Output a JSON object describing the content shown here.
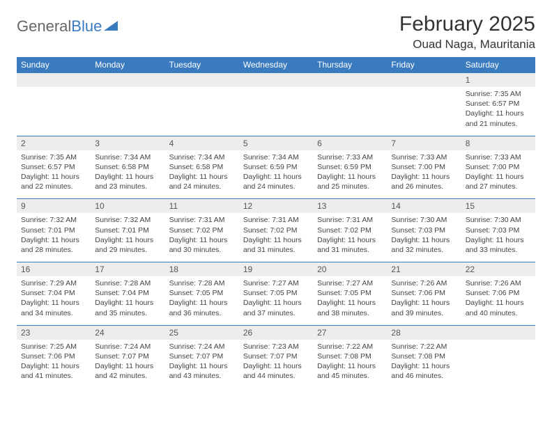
{
  "logo": {
    "part1": "General",
    "part2": "Blue"
  },
  "title": "February 2025",
  "location": "Ouad Naga, Mauritania",
  "colors": {
    "header_bg": "#3a7bbf",
    "header_text": "#ffffff",
    "daynum_bg": "#ededed",
    "rule": "#3a7bbf",
    "body_text": "#444444",
    "page_bg": "#ffffff"
  },
  "day_names": [
    "Sunday",
    "Monday",
    "Tuesday",
    "Wednesday",
    "Thursday",
    "Friday",
    "Saturday"
  ],
  "weeks": [
    {
      "nums": [
        "",
        "",
        "",
        "",
        "",
        "",
        "1"
      ],
      "cells": [
        null,
        null,
        null,
        null,
        null,
        null,
        {
          "sunrise": "Sunrise: 7:35 AM",
          "sunset": "Sunset: 6:57 PM",
          "day1": "Daylight: 11 hours",
          "day2": "and 21 minutes."
        }
      ]
    },
    {
      "nums": [
        "2",
        "3",
        "4",
        "5",
        "6",
        "7",
        "8"
      ],
      "cells": [
        {
          "sunrise": "Sunrise: 7:35 AM",
          "sunset": "Sunset: 6:57 PM",
          "day1": "Daylight: 11 hours",
          "day2": "and 22 minutes."
        },
        {
          "sunrise": "Sunrise: 7:34 AM",
          "sunset": "Sunset: 6:58 PM",
          "day1": "Daylight: 11 hours",
          "day2": "and 23 minutes."
        },
        {
          "sunrise": "Sunrise: 7:34 AM",
          "sunset": "Sunset: 6:58 PM",
          "day1": "Daylight: 11 hours",
          "day2": "and 24 minutes."
        },
        {
          "sunrise": "Sunrise: 7:34 AM",
          "sunset": "Sunset: 6:59 PM",
          "day1": "Daylight: 11 hours",
          "day2": "and 24 minutes."
        },
        {
          "sunrise": "Sunrise: 7:33 AM",
          "sunset": "Sunset: 6:59 PM",
          "day1": "Daylight: 11 hours",
          "day2": "and 25 minutes."
        },
        {
          "sunrise": "Sunrise: 7:33 AM",
          "sunset": "Sunset: 7:00 PM",
          "day1": "Daylight: 11 hours",
          "day2": "and 26 minutes."
        },
        {
          "sunrise": "Sunrise: 7:33 AM",
          "sunset": "Sunset: 7:00 PM",
          "day1": "Daylight: 11 hours",
          "day2": "and 27 minutes."
        }
      ]
    },
    {
      "nums": [
        "9",
        "10",
        "11",
        "12",
        "13",
        "14",
        "15"
      ],
      "cells": [
        {
          "sunrise": "Sunrise: 7:32 AM",
          "sunset": "Sunset: 7:01 PM",
          "day1": "Daylight: 11 hours",
          "day2": "and 28 minutes."
        },
        {
          "sunrise": "Sunrise: 7:32 AM",
          "sunset": "Sunset: 7:01 PM",
          "day1": "Daylight: 11 hours",
          "day2": "and 29 minutes."
        },
        {
          "sunrise": "Sunrise: 7:31 AM",
          "sunset": "Sunset: 7:02 PM",
          "day1": "Daylight: 11 hours",
          "day2": "and 30 minutes."
        },
        {
          "sunrise": "Sunrise: 7:31 AM",
          "sunset": "Sunset: 7:02 PM",
          "day1": "Daylight: 11 hours",
          "day2": "and 31 minutes."
        },
        {
          "sunrise": "Sunrise: 7:31 AM",
          "sunset": "Sunset: 7:02 PM",
          "day1": "Daylight: 11 hours",
          "day2": "and 31 minutes."
        },
        {
          "sunrise": "Sunrise: 7:30 AM",
          "sunset": "Sunset: 7:03 PM",
          "day1": "Daylight: 11 hours",
          "day2": "and 32 minutes."
        },
        {
          "sunrise": "Sunrise: 7:30 AM",
          "sunset": "Sunset: 7:03 PM",
          "day1": "Daylight: 11 hours",
          "day2": "and 33 minutes."
        }
      ]
    },
    {
      "nums": [
        "16",
        "17",
        "18",
        "19",
        "20",
        "21",
        "22"
      ],
      "cells": [
        {
          "sunrise": "Sunrise: 7:29 AM",
          "sunset": "Sunset: 7:04 PM",
          "day1": "Daylight: 11 hours",
          "day2": "and 34 minutes."
        },
        {
          "sunrise": "Sunrise: 7:28 AM",
          "sunset": "Sunset: 7:04 PM",
          "day1": "Daylight: 11 hours",
          "day2": "and 35 minutes."
        },
        {
          "sunrise": "Sunrise: 7:28 AM",
          "sunset": "Sunset: 7:05 PM",
          "day1": "Daylight: 11 hours",
          "day2": "and 36 minutes."
        },
        {
          "sunrise": "Sunrise: 7:27 AM",
          "sunset": "Sunset: 7:05 PM",
          "day1": "Daylight: 11 hours",
          "day2": "and 37 minutes."
        },
        {
          "sunrise": "Sunrise: 7:27 AM",
          "sunset": "Sunset: 7:05 PM",
          "day1": "Daylight: 11 hours",
          "day2": "and 38 minutes."
        },
        {
          "sunrise": "Sunrise: 7:26 AM",
          "sunset": "Sunset: 7:06 PM",
          "day1": "Daylight: 11 hours",
          "day2": "and 39 minutes."
        },
        {
          "sunrise": "Sunrise: 7:26 AM",
          "sunset": "Sunset: 7:06 PM",
          "day1": "Daylight: 11 hours",
          "day2": "and 40 minutes."
        }
      ]
    },
    {
      "nums": [
        "23",
        "24",
        "25",
        "26",
        "27",
        "28",
        ""
      ],
      "cells": [
        {
          "sunrise": "Sunrise: 7:25 AM",
          "sunset": "Sunset: 7:06 PM",
          "day1": "Daylight: 11 hours",
          "day2": "and 41 minutes."
        },
        {
          "sunrise": "Sunrise: 7:24 AM",
          "sunset": "Sunset: 7:07 PM",
          "day1": "Daylight: 11 hours",
          "day2": "and 42 minutes."
        },
        {
          "sunrise": "Sunrise: 7:24 AM",
          "sunset": "Sunset: 7:07 PM",
          "day1": "Daylight: 11 hours",
          "day2": "and 43 minutes."
        },
        {
          "sunrise": "Sunrise: 7:23 AM",
          "sunset": "Sunset: 7:07 PM",
          "day1": "Daylight: 11 hours",
          "day2": "and 44 minutes."
        },
        {
          "sunrise": "Sunrise: 7:22 AM",
          "sunset": "Sunset: 7:08 PM",
          "day1": "Daylight: 11 hours",
          "day2": "and 45 minutes."
        },
        {
          "sunrise": "Sunrise: 7:22 AM",
          "sunset": "Sunset: 7:08 PM",
          "day1": "Daylight: 11 hours",
          "day2": "and 46 minutes."
        },
        null
      ]
    }
  ]
}
